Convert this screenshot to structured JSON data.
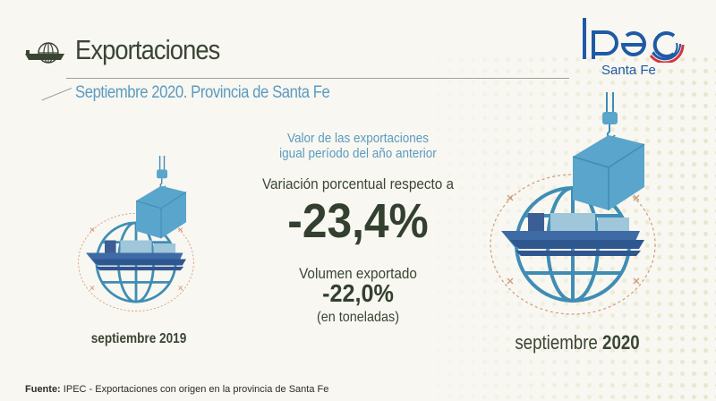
{
  "header": {
    "title": "Exportaciones",
    "subtitle": "Septiembre 2020. Provincia de Santa Fe",
    "icon": "ship-globe-icon"
  },
  "logo": {
    "name": "Ipec",
    "region": "Santa Fe",
    "colors": {
      "blue": "#1f5aa6",
      "red": "#d9333f"
    }
  },
  "center": {
    "value_label_line1": "Valor de las exportaciones",
    "value_label_line2": "igual período del año anterior",
    "variation_label": "Variación porcentual respecto a",
    "value_change": "-23,4%",
    "volume_label": "Volumen exportado",
    "volume_change": "-22,0%",
    "volume_unit": "(en toneladas)"
  },
  "periods": {
    "previous": "septiembre 2019",
    "current_month": "septiembre",
    "current_year": "2020"
  },
  "footer": {
    "source_label": "Fuente:",
    "source_text": "IPEC - Exportaciones con origen en la provincia de Santa Fe"
  },
  "colors": {
    "dark_green": "#3a4535",
    "blue_text": "#5b9bc1",
    "globe": "#3f8db5",
    "container": "#5aa5cb"
  }
}
